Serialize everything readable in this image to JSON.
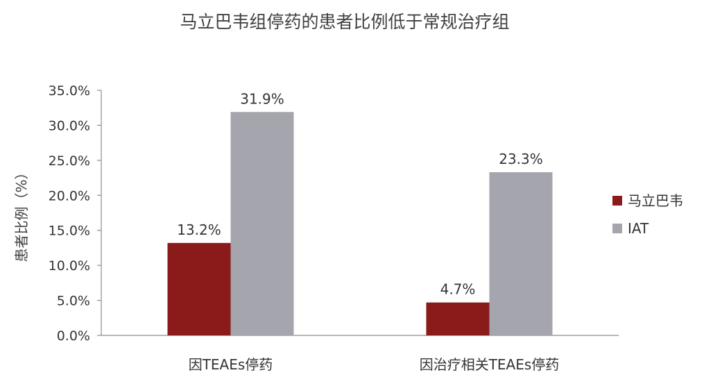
{
  "chart_data": {
    "type": "bar",
    "title": "马立巴韦组停药的患者比例低于常规治疗组",
    "ylabel": "患者比例（%）",
    "xlabel": "",
    "categories": [
      "因TEAEs停药",
      "因治疗相关TEAEs停药"
    ],
    "series": [
      {
        "name": "马立巴韦",
        "values": [
          13.2,
          4.7
        ],
        "labels": [
          "13.2%",
          "4.7%"
        ],
        "color": "#8B1A1A"
      },
      {
        "name": "IAT",
        "values": [
          31.9,
          23.3
        ],
        "labels": [
          "31.9%",
          "23.3%"
        ],
        "color": "#A5A5AD"
      }
    ],
    "ylim": [
      0,
      35
    ],
    "yticks": [
      "0.0%",
      "5.0%",
      "10.0%",
      "15.0%",
      "20.0%",
      "25.0%",
      "30.0%",
      "35.0%"
    ],
    "grid": false,
    "legend": "right"
  }
}
